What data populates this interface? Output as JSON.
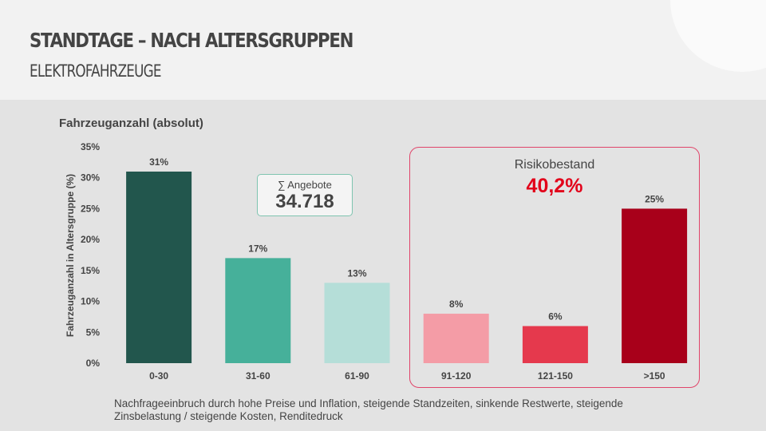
{
  "header": {
    "title": "STANDTAGE – NACH ALTERSGRUPPEN",
    "subtitle": "ELEKTROFAHRZEUGE"
  },
  "summary": {
    "label": "∑ Angebote",
    "value": "34.718"
  },
  "risk": {
    "label": "Risikobestand",
    "value": "40,2%",
    "color": "#e2001a"
  },
  "footnote": "Nachfrageeinbruch durch hohe Preise und Inflation, steigende Standzeiten, sinkende Restwerte, steigende Zinsbelastung / steigende Kosten, Renditedruck",
  "chart_data": {
    "type": "bar",
    "title": "Fahrzeuganzahl (absolut)",
    "xlabel": "",
    "ylabel": "Fahrzeuganzahl in Altersgruppe (%)",
    "categories": [
      "0-30",
      "31-60",
      "61-90",
      "91-120",
      "121-150",
      ">150"
    ],
    "values": [
      31,
      17,
      13,
      8,
      6,
      25
    ],
    "data_labels": [
      "31%",
      "17%",
      "13%",
      "8%",
      "6%",
      "25%"
    ],
    "colors": [
      "#22564d",
      "#46b09a",
      "#b5ded8",
      "#f49ca6",
      "#e5394d",
      "#a8001a"
    ],
    "ylim": [
      0,
      35
    ],
    "yticks": [
      "0%",
      "5%",
      "10%",
      "15%",
      "20%",
      "25%",
      "30%",
      "35%"
    ],
    "grid": false
  }
}
